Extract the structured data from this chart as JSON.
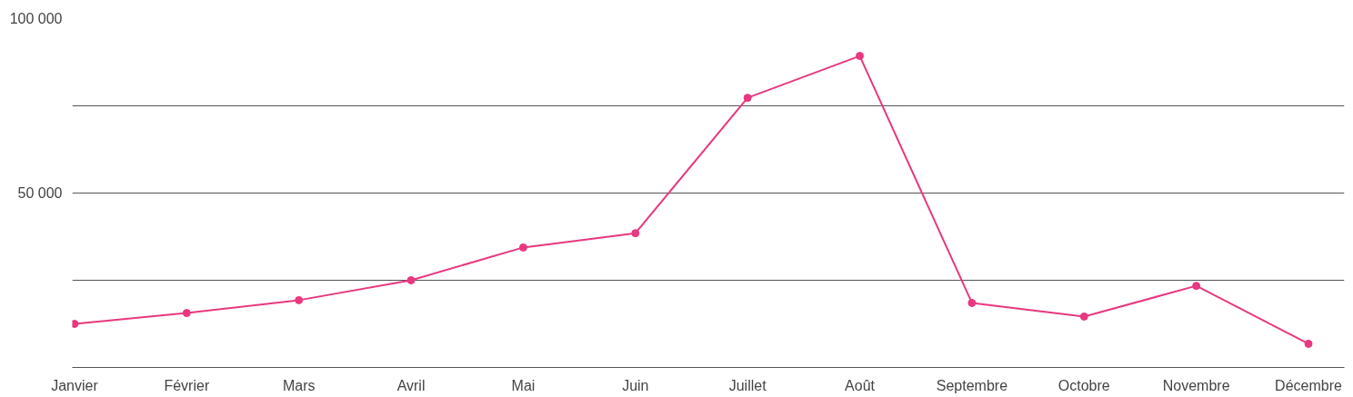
{
  "chart_data": {
    "type": "line",
    "categories": [
      "Janvier",
      "Février",
      "Mars",
      "Avril",
      "Mai",
      "Juin",
      "Juillet",
      "Août",
      "Septembre",
      "Octobre",
      "Novembre",
      "Décembre"
    ],
    "series": [
      {
        "color": "#e8387f",
        "values": [
          12500,
          15600,
          19300,
          25000,
          34400,
          38500,
          77300,
          89300,
          18500,
          14600,
          23400,
          6800
        ]
      }
    ],
    "ylim": [
      0,
      100000
    ],
    "yticks": [
      {
        "value": 0,
        "label": null
      },
      {
        "value": 25000,
        "label": null
      },
      {
        "value": 50000,
        "label": "50 000"
      },
      {
        "value": 75000,
        "label": null
      },
      {
        "value": 100000,
        "label": "100 000"
      }
    ],
    "grid": "y",
    "marker": "circle",
    "line_style": "solid"
  }
}
